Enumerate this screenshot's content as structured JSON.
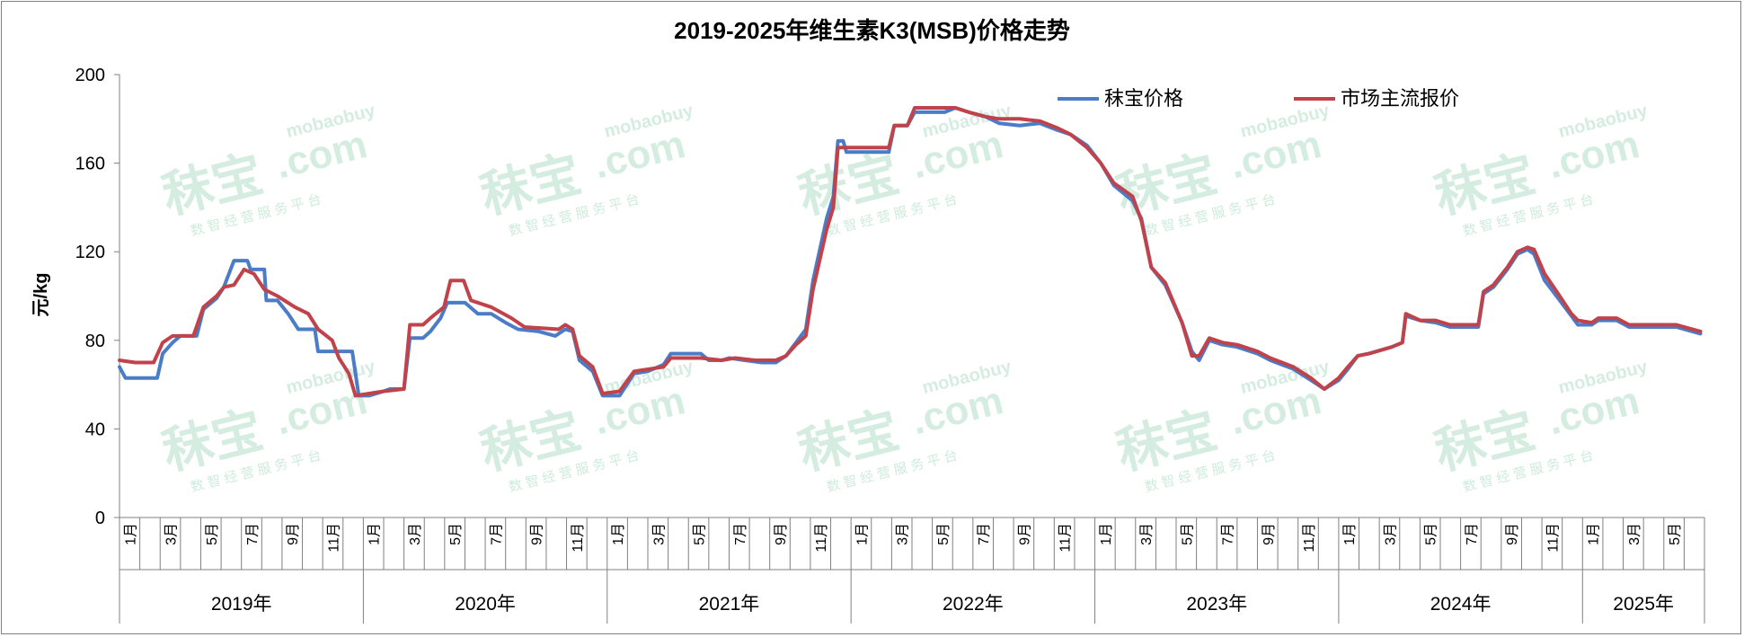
{
  "colors": {
    "series_a": "#4a7cc7",
    "series_b": "#c0424a",
    "axis": "#808080",
    "watermark": "#c6e8d6"
  },
  "chart_data": {
    "type": "line",
    "title": "2019-2025年维生素K3(MSB)价格走势",
    "ylabel": "元/kg",
    "xlabel": "",
    "ylim": [
      0,
      200
    ],
    "yticks": [
      "0",
      "40",
      "80",
      "120",
      "160",
      "200"
    ],
    "grid": false,
    "legend_position": "top-right",
    "x_range": [
      "2019-01",
      "2025-06"
    ],
    "month_tick_labels": [
      "1月",
      "3月",
      "5月",
      "7月",
      "9月",
      "11月"
    ],
    "years": [
      "2019年",
      "2020年",
      "2021年",
      "2022年",
      "2023年",
      "2024年",
      "2025年"
    ],
    "watermark": {
      "brand": "秣宝",
      "site": "mobaobuy",
      "domain": ".com",
      "tagline": "数 智 经 营 服 务 平 台"
    },
    "series": [
      {
        "name": "秣宝价格",
        "points": [
          [
            "2019-01-01",
            68
          ],
          [
            "2019-01-10",
            63
          ],
          [
            "2019-02-25",
            63
          ],
          [
            "2019-03-05",
            74
          ],
          [
            "2019-03-20",
            79
          ],
          [
            "2019-04-01",
            82
          ],
          [
            "2019-04-25",
            82
          ],
          [
            "2019-05-05",
            94
          ],
          [
            "2019-05-25",
            99
          ],
          [
            "2019-06-05",
            104
          ],
          [
            "2019-06-20",
            116
          ],
          [
            "2019-07-10",
            116
          ],
          [
            "2019-07-15",
            112
          ],
          [
            "2019-08-05",
            112
          ],
          [
            "2019-08-08",
            98
          ],
          [
            "2019-08-25",
            98
          ],
          [
            "2019-09-10",
            92
          ],
          [
            "2019-09-25",
            85
          ],
          [
            "2019-10-20",
            85
          ],
          [
            "2019-10-25",
            75
          ],
          [
            "2019-11-20",
            75
          ],
          [
            "2019-12-15",
            75
          ],
          [
            "2019-12-25",
            55
          ],
          [
            "2020-01-10",
            55
          ],
          [
            "2020-02-01",
            57
          ],
          [
            "2020-02-10",
            58
          ],
          [
            "2020-03-01",
            58
          ],
          [
            "2020-03-10",
            81
          ],
          [
            "2020-03-30",
            81
          ],
          [
            "2020-04-10",
            84
          ],
          [
            "2020-04-25",
            90
          ],
          [
            "2020-05-05",
            97
          ],
          [
            "2020-06-01",
            97
          ],
          [
            "2020-06-20",
            92
          ],
          [
            "2020-07-10",
            92
          ],
          [
            "2020-08-01",
            88
          ],
          [
            "2020-08-20",
            85
          ],
          [
            "2020-09-20",
            84
          ],
          [
            "2020-10-15",
            82
          ],
          [
            "2020-10-30",
            85
          ],
          [
            "2020-11-10",
            84
          ],
          [
            "2020-11-20",
            71
          ],
          [
            "2020-12-10",
            66
          ],
          [
            "2020-12-25",
            55
          ],
          [
            "2021-01-20",
            55
          ],
          [
            "2021-02-10",
            65
          ],
          [
            "2021-03-01",
            66
          ],
          [
            "2021-03-25",
            69
          ],
          [
            "2021-04-05",
            74
          ],
          [
            "2021-05-20",
            74
          ],
          [
            "2021-06-01",
            71
          ],
          [
            "2021-06-20",
            71
          ],
          [
            "2021-07-01",
            72
          ],
          [
            "2021-07-25",
            71
          ],
          [
            "2021-08-20",
            70
          ],
          [
            "2021-09-10",
            70
          ],
          [
            "2021-09-25",
            73
          ],
          [
            "2021-10-10",
            79
          ],
          [
            "2021-10-25",
            85
          ],
          [
            "2021-11-05",
            107
          ],
          [
            "2021-11-25",
            135
          ],
          [
            "2021-12-05",
            145
          ],
          [
            "2021-12-12",
            170
          ],
          [
            "2021-12-20",
            170
          ],
          [
            "2021-12-25",
            165
          ],
          [
            "2022-02-25",
            165
          ],
          [
            "2022-03-05",
            177
          ],
          [
            "2022-03-25",
            177
          ],
          [
            "2022-04-05",
            183
          ],
          [
            "2022-05-20",
            183
          ],
          [
            "2022-06-05",
            185
          ],
          [
            "2022-06-25",
            183
          ],
          [
            "2022-07-20",
            181
          ],
          [
            "2022-08-10",
            178
          ],
          [
            "2022-09-10",
            177
          ],
          [
            "2022-10-10",
            178
          ],
          [
            "2022-11-05",
            175
          ],
          [
            "2022-11-25",
            173
          ],
          [
            "2022-12-20",
            168
          ],
          [
            "2023-01-10",
            160
          ],
          [
            "2023-01-30",
            150
          ],
          [
            "2023-02-25",
            143
          ],
          [
            "2023-03-10",
            135
          ],
          [
            "2023-03-25",
            113
          ],
          [
            "2023-04-15",
            105
          ],
          [
            "2023-05-10",
            88
          ],
          [
            "2023-05-25",
            75
          ],
          [
            "2023-06-05",
            71
          ],
          [
            "2023-06-20",
            80
          ],
          [
            "2023-07-10",
            78
          ],
          [
            "2023-08-01",
            77
          ],
          [
            "2023-09-01",
            74
          ],
          [
            "2023-09-20",
            71
          ],
          [
            "2023-10-25",
            67
          ],
          [
            "2023-11-20",
            62
          ],
          [
            "2023-12-10",
            58
          ],
          [
            "2024-01-01",
            62
          ],
          [
            "2024-01-15",
            67
          ],
          [
            "2024-01-30",
            73
          ],
          [
            "2024-02-15",
            74
          ],
          [
            "2024-03-20",
            77
          ],
          [
            "2024-04-05",
            79
          ],
          [
            "2024-04-10",
            91
          ],
          [
            "2024-05-01",
            89
          ],
          [
            "2024-05-25",
            88
          ],
          [
            "2024-06-15",
            86
          ],
          [
            "2024-07-05",
            86
          ],
          [
            "2024-07-28",
            86
          ],
          [
            "2024-08-05",
            101
          ],
          [
            "2024-08-20",
            104
          ],
          [
            "2024-09-10",
            112
          ],
          [
            "2024-09-25",
            119
          ],
          [
            "2024-10-10",
            121
          ],
          [
            "2024-10-20",
            119
          ],
          [
            "2024-11-05",
            107
          ],
          [
            "2024-11-25",
            99
          ],
          [
            "2024-12-15",
            91
          ],
          [
            "2024-12-25",
            87
          ],
          [
            "2025-01-15",
            87
          ],
          [
            "2025-01-25",
            89
          ],
          [
            "2025-02-20",
            89
          ],
          [
            "2025-03-10",
            86
          ],
          [
            "2025-05-20",
            86
          ],
          [
            "2025-06-25",
            83
          ]
        ]
      },
      {
        "name": "市场主流报价",
        "points": [
          [
            "2019-01-01",
            71
          ],
          [
            "2019-01-25",
            70
          ],
          [
            "2019-02-20",
            70
          ],
          [
            "2019-03-05",
            79
          ],
          [
            "2019-03-20",
            82
          ],
          [
            "2019-04-20",
            82
          ],
          [
            "2019-05-05",
            95
          ],
          [
            "2019-05-25",
            100
          ],
          [
            "2019-06-05",
            104
          ],
          [
            "2019-06-20",
            105
          ],
          [
            "2019-07-05",
            112
          ],
          [
            "2019-07-20",
            110
          ],
          [
            "2019-08-05",
            103
          ],
          [
            "2019-08-25",
            100
          ],
          [
            "2019-09-20",
            95
          ],
          [
            "2019-10-10",
            92
          ],
          [
            "2019-10-25",
            85
          ],
          [
            "2019-11-15",
            80
          ],
          [
            "2019-11-25",
            72
          ],
          [
            "2019-12-10",
            65
          ],
          [
            "2019-12-20",
            55
          ],
          [
            "2020-01-10",
            56
          ],
          [
            "2020-02-01",
            57
          ],
          [
            "2020-03-01",
            58
          ],
          [
            "2020-03-10",
            87
          ],
          [
            "2020-03-30",
            87
          ],
          [
            "2020-04-10",
            90
          ],
          [
            "2020-04-30",
            95
          ],
          [
            "2020-05-10",
            107
          ],
          [
            "2020-05-30",
            107
          ],
          [
            "2020-06-10",
            98
          ],
          [
            "2020-07-10",
            95
          ],
          [
            "2020-08-10",
            90
          ],
          [
            "2020-08-30",
            86
          ],
          [
            "2020-10-20",
            85
          ],
          [
            "2020-10-30",
            87
          ],
          [
            "2020-11-10",
            85
          ],
          [
            "2020-11-20",
            73
          ],
          [
            "2020-12-10",
            68
          ],
          [
            "2020-12-25",
            56
          ],
          [
            "2021-01-20",
            57
          ],
          [
            "2021-02-10",
            66
          ],
          [
            "2021-03-25",
            68
          ],
          [
            "2021-04-05",
            72
          ],
          [
            "2021-05-20",
            72
          ],
          [
            "2021-06-20",
            71
          ],
          [
            "2021-07-10",
            72
          ],
          [
            "2021-08-10",
            71
          ],
          [
            "2021-09-10",
            71
          ],
          [
            "2021-09-25",
            73
          ],
          [
            "2021-10-10",
            78
          ],
          [
            "2021-10-25",
            82
          ],
          [
            "2021-11-05",
            103
          ],
          [
            "2021-11-25",
            130
          ],
          [
            "2021-12-05",
            140
          ],
          [
            "2021-12-12",
            167
          ],
          [
            "2022-02-25",
            167
          ],
          [
            "2022-03-05",
            177
          ],
          [
            "2022-03-25",
            177
          ],
          [
            "2022-04-05",
            185
          ],
          [
            "2022-05-20",
            185
          ],
          [
            "2022-06-05",
            185
          ],
          [
            "2022-06-25",
            183
          ],
          [
            "2022-07-20",
            181
          ],
          [
            "2022-08-10",
            180
          ],
          [
            "2022-09-10",
            180
          ],
          [
            "2022-10-10",
            179
          ],
          [
            "2022-11-05",
            176
          ],
          [
            "2022-11-25",
            173
          ],
          [
            "2022-12-20",
            167
          ],
          [
            "2023-01-10",
            160
          ],
          [
            "2023-01-30",
            151
          ],
          [
            "2023-02-25",
            145
          ],
          [
            "2023-03-10",
            134
          ],
          [
            "2023-03-25",
            113
          ],
          [
            "2023-04-15",
            106
          ],
          [
            "2023-05-10",
            88
          ],
          [
            "2023-05-25",
            73
          ],
          [
            "2023-06-05",
            73
          ],
          [
            "2023-06-20",
            81
          ],
          [
            "2023-07-10",
            79
          ],
          [
            "2023-08-01",
            78
          ],
          [
            "2023-09-01",
            75
          ],
          [
            "2023-09-20",
            72
          ],
          [
            "2023-10-25",
            68
          ],
          [
            "2023-11-20",
            63
          ],
          [
            "2023-12-10",
            58
          ],
          [
            "2024-01-01",
            63
          ],
          [
            "2024-01-15",
            68
          ],
          [
            "2024-01-30",
            73
          ],
          [
            "2024-02-15",
            74
          ],
          [
            "2024-03-20",
            77
          ],
          [
            "2024-04-05",
            79
          ],
          [
            "2024-04-10",
            92
          ],
          [
            "2024-05-01",
            89
          ],
          [
            "2024-05-25",
            89
          ],
          [
            "2024-06-15",
            87
          ],
          [
            "2024-07-05",
            87
          ],
          [
            "2024-07-28",
            87
          ],
          [
            "2024-08-05",
            102
          ],
          [
            "2024-08-20",
            105
          ],
          [
            "2024-09-10",
            113
          ],
          [
            "2024-09-25",
            120
          ],
          [
            "2024-10-10",
            122
          ],
          [
            "2024-10-20",
            121
          ],
          [
            "2024-11-05",
            110
          ],
          [
            "2024-11-25",
            101
          ],
          [
            "2024-12-15",
            92
          ],
          [
            "2024-12-25",
            89
          ],
          [
            "2025-01-15",
            88
          ],
          [
            "2025-01-25",
            90
          ],
          [
            "2025-02-20",
            90
          ],
          [
            "2025-03-10",
            87
          ],
          [
            "2025-05-20",
            87
          ],
          [
            "2025-06-25",
            84
          ]
        ]
      }
    ]
  }
}
